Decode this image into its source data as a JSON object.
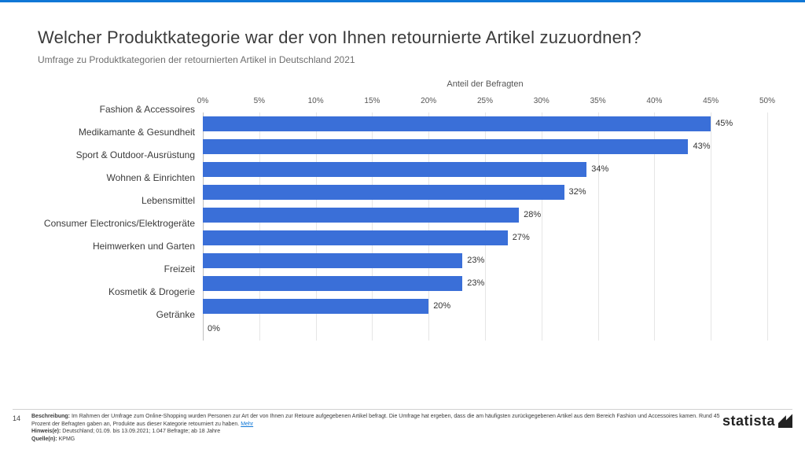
{
  "title": "Welcher Produktkategorie war der von Ihnen retournierte Artikel zuzuordnen?",
  "subtitle": "Umfrage zu Produktkategorien der retournierten Artikel in Deutschland 2021",
  "axis_title": "Anteil der Befragten",
  "chart": {
    "type": "bar-horizontal",
    "xmin": 0,
    "xmax": 50,
    "tick_step": 5,
    "tick_suffix": "%",
    "bar_color": "#3a6fd8",
    "grid_color": "#e5e5e5",
    "categories": [
      "Fashion & Accessoires",
      "Medikamante & Gesundheit",
      "Sport & Outdoor-Ausrüstung",
      "Wohnen & Einrichten",
      "Lebensmittel",
      "Consumer Electronics/Elektrogeräte",
      "Heimwerken und Garten",
      "Freizeit",
      "Kosmetik & Drogerie",
      "Getränke"
    ],
    "values": [
      45,
      43,
      34,
      32,
      28,
      27,
      23,
      23,
      20,
      0
    ]
  },
  "footer": {
    "page": "14",
    "desc_label": "Beschreibung:",
    "desc": "Im Rahmen der Umfrage zum Online-Shopping wurden Personen zur Art der von Ihnen zur Retoure aufgegebenen Artikel befragt. Die Umfrage hat ergeben, dass die am häufigsten zurückgegebenen Artikel aus dem Bereich Fashion und Accessoires kamen. Rund 45 Prozent der Befragten gaben an, Produkte aus dieser Kategorie retourniert zu haben.",
    "more": "Mehr",
    "hint_label": "Hinweis(e):",
    "hint": "Deutschland; 01.09. bis 13.09.2021; 1.047 Befragte; ab 18 Jahre",
    "src_label": "Quelle(n):",
    "src": "KPMG",
    "logo": "statista"
  }
}
